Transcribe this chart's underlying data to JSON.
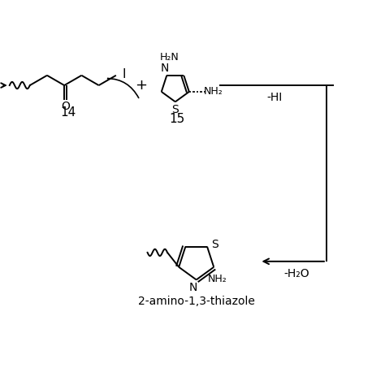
{
  "bg_color": "#ffffff",
  "fg_color": "#000000",
  "label_14": "14",
  "label_15": "15",
  "label_HI": "-HI",
  "label_H2O": "-H₂O",
  "label_product": "2-amino-1,3-thiazole",
  "fig_width": 4.74,
  "fig_height": 4.74,
  "dpi": 100
}
